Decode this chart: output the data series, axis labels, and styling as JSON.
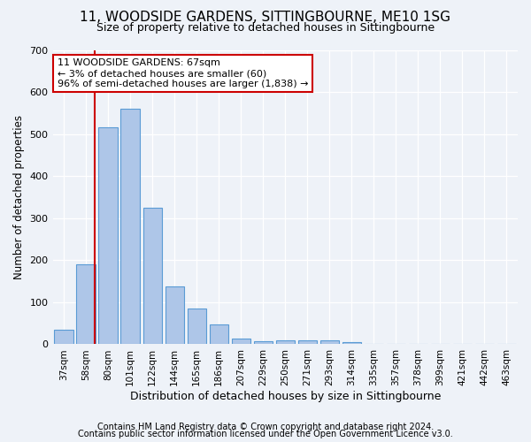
{
  "title": "11, WOODSIDE GARDENS, SITTINGBOURNE, ME10 1SG",
  "subtitle": "Size of property relative to detached houses in Sittingbourne",
  "xlabel": "Distribution of detached houses by size in Sittingbourne",
  "ylabel": "Number of detached properties",
  "categories": [
    "37sqm",
    "58sqm",
    "80sqm",
    "101sqm",
    "122sqm",
    "144sqm",
    "165sqm",
    "186sqm",
    "207sqm",
    "229sqm",
    "250sqm",
    "271sqm",
    "293sqm",
    "314sqm",
    "335sqm",
    "357sqm",
    "378sqm",
    "399sqm",
    "421sqm",
    "442sqm",
    "463sqm"
  ],
  "values": [
    35,
    190,
    515,
    560,
    325,
    138,
    85,
    47,
    13,
    8,
    10,
    10,
    10,
    5,
    0,
    0,
    0,
    0,
    0,
    0,
    0
  ],
  "bar_color": "#aec6e8",
  "bar_edge_color": "#5a9bd5",
  "ylim": [
    0,
    700
  ],
  "yticks": [
    0,
    100,
    200,
    300,
    400,
    500,
    600,
    700
  ],
  "vline_x_index": 1.43,
  "vline_color": "#cc0000",
  "annotation_title": "11 WOODSIDE GARDENS: 67sqm",
  "annotation_line1": "← 3% of detached houses are smaller (60)",
  "annotation_line2": "96% of semi-detached houses are larger (1,838) →",
  "annotation_box_color": "#ffffff",
  "annotation_box_edge": "#cc0000",
  "background_color": "#eef2f8",
  "footer1": "Contains HM Land Registry data © Crown copyright and database right 2024.",
  "footer2": "Contains public sector information licensed under the Open Government Licence v3.0.",
  "title_fontsize": 11,
  "subtitle_fontsize": 9,
  "footer_fontsize": 7
}
